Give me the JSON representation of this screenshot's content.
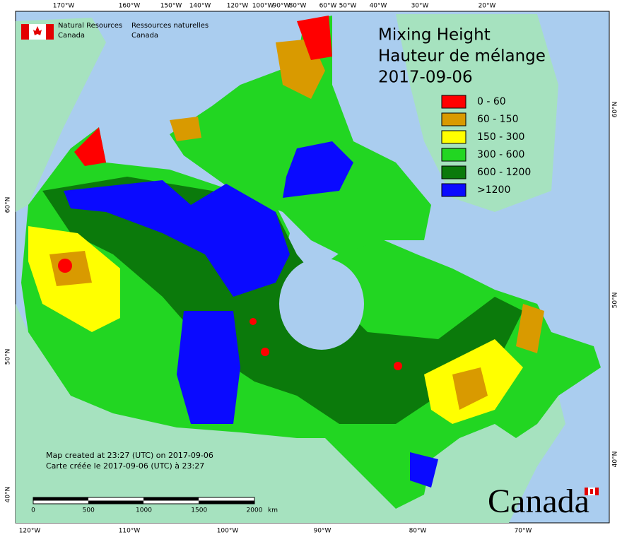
{
  "header": {
    "agency_en": "Natural Resources",
    "country_en": "Canada",
    "agency_fr": "Ressources naturelles",
    "country_fr": "Canada"
  },
  "title": {
    "line1": "Mixing Height",
    "line2": "Hauteur de mélange",
    "date": "2017-09-06"
  },
  "legend": [
    {
      "label": "0 - 60",
      "color": "#ff0000"
    },
    {
      "label": "60 - 150",
      "color": "#d99a00"
    },
    {
      "label": "150 - 300",
      "color": "#ffff00"
    },
    {
      "label": "300 - 600",
      "color": "#22d622"
    },
    {
      "label": "600 - 1200",
      "color": "#0b7a0b"
    },
    {
      "label": ">1200",
      "color": "#0a0aff"
    }
  ],
  "top_labels": [
    "170°W",
    "160°W",
    "150°W",
    "140°W",
    "120°W",
    "100°W",
    "90°W",
    "80°W",
    "60°W",
    "50°W",
    "40°W",
    "30°W",
    "20°W"
  ],
  "bottom_labels": [
    "120°W",
    "110°W",
    "100°W",
    "90°W",
    "80°W",
    "70°W"
  ],
  "left_labels": [
    "60°N",
    "50°N",
    "40°N"
  ],
  "right_labels": [
    "60°N",
    "50°N",
    "40°N"
  ],
  "notes": [
    "Map created at 23:27 (UTC) on 2017-09-06",
    "Carte créée le 2017-09-06 (UTC) à 23:27"
  ],
  "scale_bar": {
    "labels": [
      "0",
      "500",
      "1000",
      "1500",
      "2000"
    ],
    "unit": "km"
  },
  "wordmark": "Canada"
}
